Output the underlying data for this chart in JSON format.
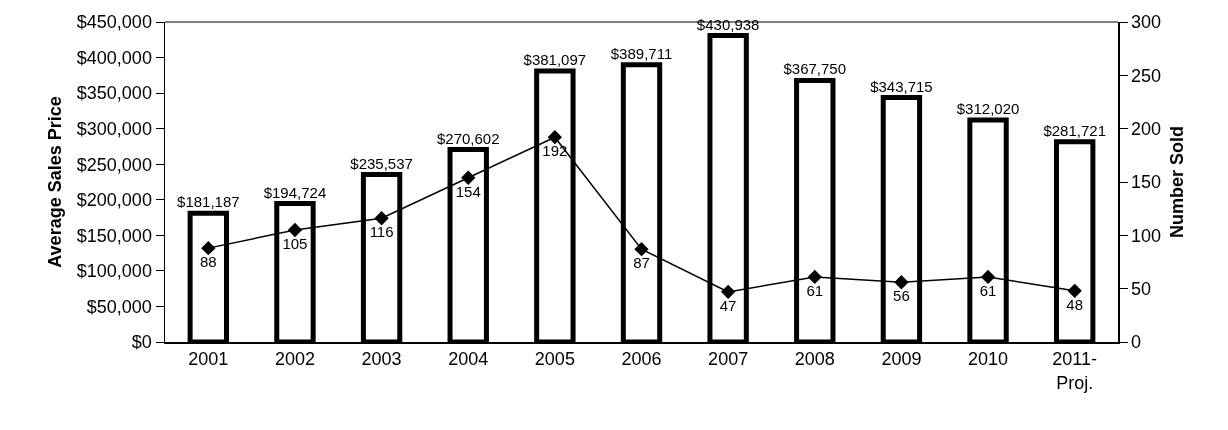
{
  "chart_data": {
    "type": "bar",
    "categories": [
      "2001",
      "2002",
      "2003",
      "2004",
      "2005",
      "2006",
      "2007",
      "2008",
      "2009",
      "2010",
      "2011- Proj."
    ],
    "ylabel": "Average Sales Price",
    "y2label": "Number Sold",
    "series": [
      {
        "color": "#ffffff",
        "values": [
          181187,
          194724,
          235537,
          270602,
          381097,
          389711,
          430938,
          367750,
          343715,
          312020,
          281721
        ],
        "value_labels": [
          "$181,187",
          "$194,724",
          "$235,537",
          "$270,602",
          "$381,097",
          "$389,711",
          "$430,938",
          "$367,750",
          "$343,715",
          "$312,020",
          "$281,721"
        ]
      },
      {
        "type": "line",
        "axis": "y2",
        "color": "#000000",
        "marker": "diamond",
        "line_style": "solid",
        "values": [
          88,
          105,
          116,
          154,
          192,
          87,
          47,
          61,
          56,
          61,
          48
        ],
        "value_labels": [
          "88",
          "105",
          "116",
          "154",
          "192",
          "87",
          "47",
          "61",
          "56",
          "61",
          "48"
        ]
      }
    ],
    "ylim": [
      0,
      450000
    ],
    "yticks": [
      {
        "value": 0,
        "label": "$0"
      },
      {
        "value": 50000,
        "label": "$50,000"
      },
      {
        "value": 100000,
        "label": "$100,000"
      },
      {
        "value": 150000,
        "label": "$150,000"
      },
      {
        "value": 200000,
        "label": "$200,000"
      },
      {
        "value": 250000,
        "label": "$250,000"
      },
      {
        "value": 300000,
        "label": "$300,000"
      },
      {
        "value": 350000,
        "label": "$350,000"
      },
      {
        "value": 400000,
        "label": "$400,000"
      },
      {
        "value": 450000,
        "label": "$450,000"
      }
    ],
    "y2lim": [
      0,
      300
    ],
    "y2ticks": [
      0,
      50,
      100,
      150,
      200,
      250,
      300
    ],
    "grid": false
  }
}
